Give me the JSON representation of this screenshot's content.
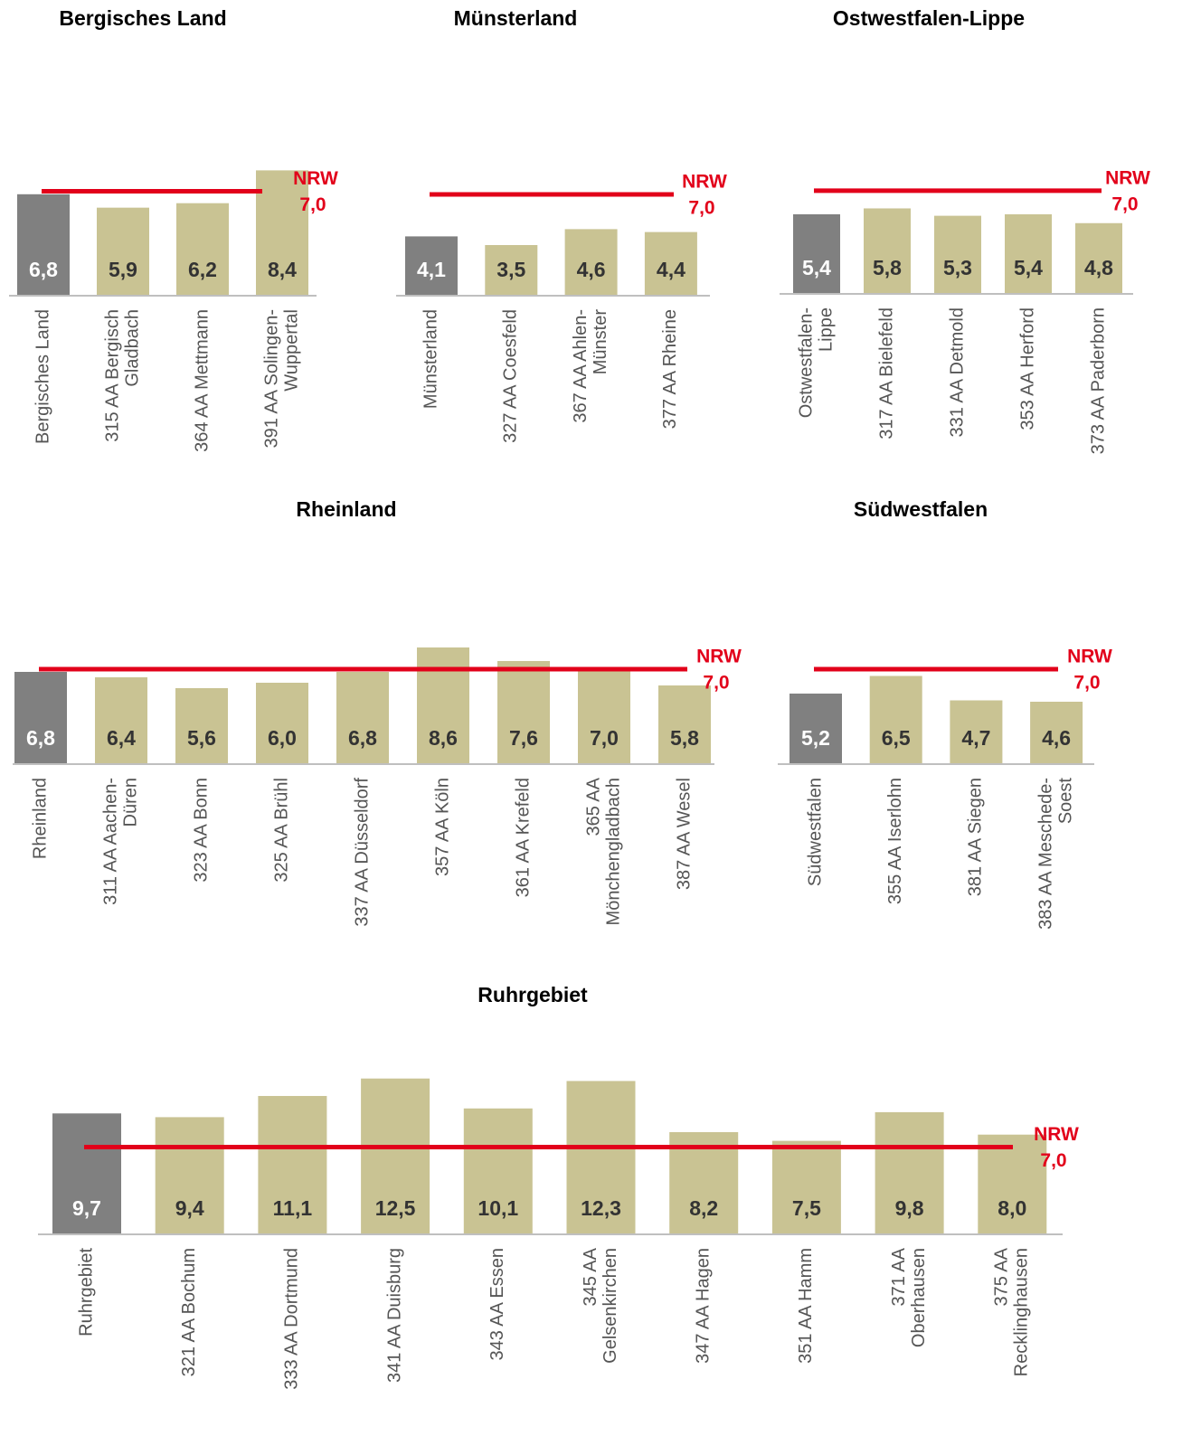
{
  "chart_data": [
    {
      "type": "bar",
      "title": "Bergisches Land",
      "categories": [
        [
          "Bergisches Land"
        ],
        [
          "315 AA Bergisch",
          "Gladbach"
        ],
        [
          "364 AA Mettmann"
        ],
        [
          "391 AA Solingen-",
          "Wuppertal"
        ]
      ],
      "values": [
        6.8,
        5.9,
        6.2,
        8.4
      ],
      "value_labels": [
        "6,8",
        "5,9",
        "6,2",
        "8,4"
      ],
      "colors": [
        "#808080",
        "#c9c393",
        "#c9c393",
        "#c9c393"
      ],
      "ylim": [
        0,
        10
      ],
      "reference": {
        "label": "NRW",
        "value": 7,
        "value_label": "7,0",
        "color": "#e2001a"
      }
    },
    {
      "type": "bar",
      "title": "Münsterland",
      "categories": [
        [
          "Münsterland"
        ],
        [
          "327 AA Coesfeld"
        ],
        [
          "367 AA Ahlen-",
          "Münster"
        ],
        [
          "377 AA Rheine"
        ]
      ],
      "values": [
        4.1,
        3.5,
        4.6,
        4.4
      ],
      "value_labels": [
        "4,1",
        "3,5",
        "4,6",
        "4,4"
      ],
      "colors": [
        "#808080",
        "#c9c393",
        "#c9c393",
        "#c9c393"
      ],
      "ylim": [
        0,
        10
      ],
      "reference": {
        "label": "NRW",
        "value": 7,
        "value_label": "7,0",
        "color": "#e2001a"
      }
    },
    {
      "type": "bar",
      "title": "Ostwestfalen-Lippe",
      "categories": [
        [
          "Ostwestfalen-",
          "Lippe"
        ],
        [
          "317 AA Bielefeld"
        ],
        [
          "331 AA Detmold"
        ],
        [
          "353 AA Herford"
        ],
        [
          "373 AA Paderborn"
        ]
      ],
      "values": [
        5.4,
        5.8,
        5.3,
        5.4,
        4.8
      ],
      "value_labels": [
        "5,4",
        "5,8",
        "5,3",
        "5,4",
        "4,8"
      ],
      "colors": [
        "#808080",
        "#c9c393",
        "#c9c393",
        "#c9c393",
        "#c9c393"
      ],
      "ylim": [
        0,
        10
      ],
      "reference": {
        "label": "NRW",
        "value": 7,
        "value_label": "7,0",
        "color": "#e2001a"
      }
    },
    {
      "type": "bar",
      "title": "Rheinland",
      "categories": [
        [
          "Rheinland"
        ],
        [
          "311 AA Aachen-",
          "Düren"
        ],
        [
          "323 AA Bonn"
        ],
        [
          "325 AA Brühl"
        ],
        [
          "337 AA Düsseldorf"
        ],
        [
          "357 AA Köln"
        ],
        [
          "361 AA Krefeld"
        ],
        [
          "365 AA",
          "Mönchengladbach"
        ],
        [
          "387 AA Wesel"
        ]
      ],
      "values": [
        6.8,
        6.4,
        5.6,
        6.0,
        6.8,
        8.6,
        7.6,
        7.0,
        5.8
      ],
      "value_labels": [
        "6,8",
        "6,4",
        "5,6",
        "6,0",
        "6,8",
        "8,6",
        "7,6",
        "7,0",
        "5,8"
      ],
      "colors": [
        "#808080",
        "#c9c393",
        "#c9c393",
        "#c9c393",
        "#c9c393",
        "#c9c393",
        "#c9c393",
        "#c9c393",
        "#c9c393"
      ],
      "ylim": [
        0,
        10
      ],
      "reference": {
        "label": "NRW",
        "value": 7,
        "value_label": "7,0",
        "color": "#e2001a"
      }
    },
    {
      "type": "bar",
      "title": "Südwestfalen",
      "categories": [
        [
          "Südwestfalen"
        ],
        [
          "355 AA Iserlohn"
        ],
        [
          "381 AA Siegen"
        ],
        [
          "383 AA Meschede-",
          "Soest"
        ]
      ],
      "values": [
        5.2,
        6.5,
        4.7,
        4.6
      ],
      "value_labels": [
        "5,2",
        "6,5",
        "4,7",
        "4,6"
      ],
      "colors": [
        "#808080",
        "#c9c393",
        "#c9c393",
        "#c9c393"
      ],
      "ylim": [
        0,
        10
      ],
      "reference": {
        "label": "NRW",
        "value": 7,
        "value_label": "7,0",
        "color": "#e2001a"
      }
    },
    {
      "type": "bar",
      "title": "Ruhrgebiet",
      "categories": [
        [
          "Ruhrgebiet"
        ],
        [
          "321 AA Bochum"
        ],
        [
          "333 AA Dortmund"
        ],
        [
          "341 AA Duisburg"
        ],
        [
          "343 AA Essen"
        ],
        [
          "345 AA",
          "Gelsenkirchen"
        ],
        [
          "347 AA Hagen"
        ],
        [
          "351 AA Hamm"
        ],
        [
          "371 AA",
          "Oberhausen"
        ],
        [
          "375 AA",
          "Recklinghausen"
        ]
      ],
      "values": [
        9.7,
        9.4,
        11.1,
        12.5,
        10.1,
        12.3,
        8.2,
        7.5,
        9.8,
        8.0
      ],
      "value_labels": [
        "9,7",
        "9,4",
        "11,1",
        "12,5",
        "10,1",
        "12,3",
        "8,2",
        "7,5",
        "9,8",
        "8,0"
      ],
      "colors": [
        "#808080",
        "#c9c393",
        "#c9c393",
        "#c9c393",
        "#c9c393",
        "#c9c393",
        "#c9c393",
        "#c9c393",
        "#c9c393",
        "#c9c393"
      ],
      "ylim": [
        0,
        14
      ],
      "reference": {
        "label": "NRW",
        "value": 7,
        "value_label": "7,0",
        "color": "#e2001a"
      }
    }
  ]
}
